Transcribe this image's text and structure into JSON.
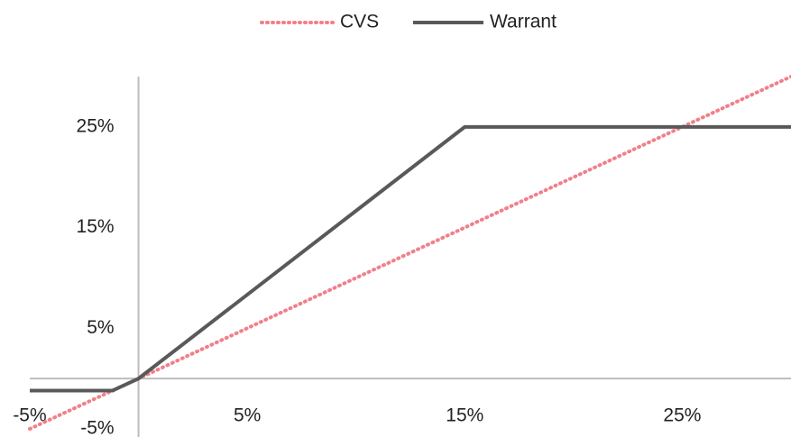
{
  "chart_data": {
    "type": "line",
    "x": [
      -5,
      -1.2,
      0,
      15,
      30
    ],
    "series": [
      {
        "name": "CVS",
        "color": "#f0808a",
        "dash": "dotted",
        "values": [
          -5,
          -1.2,
          0,
          15,
          30
        ]
      },
      {
        "name": "Warrant",
        "color": "#595959",
        "dash": "solid",
        "values": [
          -1.2,
          -1.2,
          0,
          25,
          25
        ]
      }
    ],
    "xlim": [
      -5,
      30
    ],
    "ylim": [
      -5,
      30
    ],
    "xticks": [
      {
        "value": -5,
        "label": "-5%"
      },
      {
        "value": 5,
        "label": "5%"
      },
      {
        "value": 15,
        "label": "15%"
      },
      {
        "value": 25,
        "label": "25%"
      }
    ],
    "yticks": [
      {
        "value": -5,
        "label": "-5%"
      },
      {
        "value": 5,
        "label": "5%"
      },
      {
        "value": 15,
        "label": "15%"
      },
      {
        "value": 25,
        "label": "25%"
      }
    ],
    "grid": false,
    "legend": "top"
  }
}
